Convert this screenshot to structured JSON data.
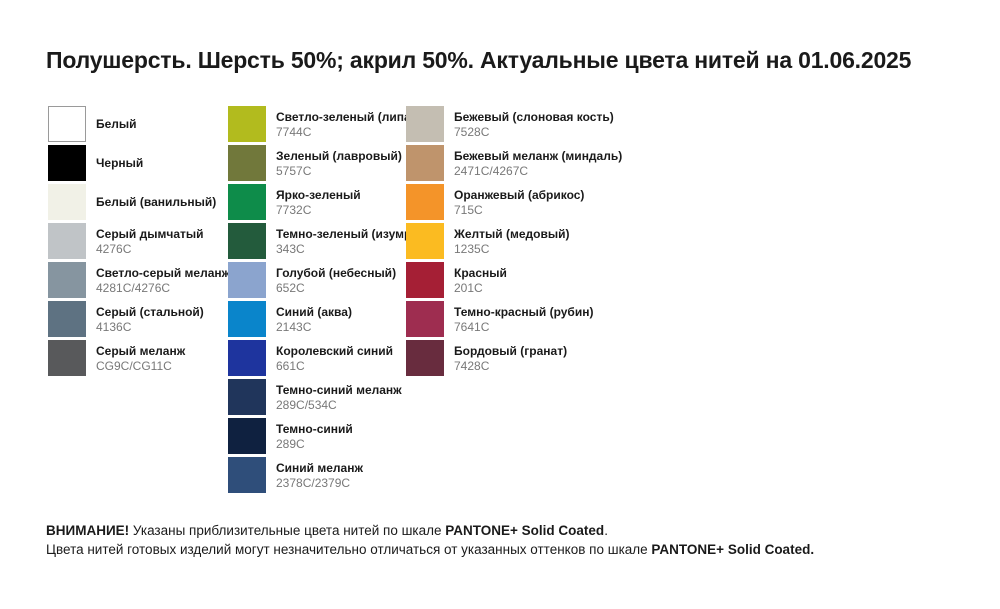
{
  "title": "Полушерсть. Шерсть 50%; акрил 50%. Актуальные цвета нитей на 01.06.2025",
  "palette": {
    "columns": [
      {
        "items": [
          {
            "name": "Белый",
            "code": "",
            "color": "#FFFFFF",
            "border": true
          },
          {
            "name": "Черный",
            "code": "",
            "color": "#000000"
          },
          {
            "name": "Белый (ванильный)",
            "code": "",
            "color": "#F1F1E7"
          },
          {
            "name": "Серый дымчатый",
            "code": "4276C",
            "color": "#C0C4C7"
          },
          {
            "name": "Светло-серый меланж",
            "code": "4281C/4276C",
            "color": "#8695A0"
          },
          {
            "name": "Серый (стальной)",
            "code": "4136C",
            "color": "#5E7282"
          },
          {
            "name": "Серый меланж",
            "code": "CG9C/CG11C",
            "color": "#58595B"
          }
        ]
      },
      {
        "items": [
          {
            "name": "Светло-зеленый (липа)",
            "code": "7744C",
            "color": "#B2BB1E"
          },
          {
            "name": "Зеленый (лавровый)",
            "code": "5757C",
            "color": "#71783B"
          },
          {
            "name": "Ярко-зеленый",
            "code": "7732C",
            "color": "#0E8C4A"
          },
          {
            "name": "Темно-зеленый (изумруд)",
            "code": "343C",
            "color": "#235B3C"
          },
          {
            "name": "Голубой (небесный)",
            "code": "652C",
            "color": "#8BA4CE"
          },
          {
            "name": "Синий (аква)",
            "code": "2143C",
            "color": "#0A85CB"
          },
          {
            "name": "Королевский синий",
            "code": "661C",
            "color": "#1E349E"
          },
          {
            "name": "Темно-синий меланж",
            "code": "289C/534C",
            "color": "#20355B"
          },
          {
            "name": "Темно-синий",
            "code": "289C",
            "color": "#0F2140"
          },
          {
            "name": "Синий меланж",
            "code": "2378C/2379C",
            "color": "#2F4E7A"
          }
        ]
      },
      {
        "items": [
          {
            "name": "Бежевый (слоновая кость)",
            "code": "7528C",
            "color": "#C4BEB2"
          },
          {
            "name": "Бежевый меланж (миндаль)",
            "code": "2471C/4267C",
            "color": "#BF946C"
          },
          {
            "name": "Оранжевый (абрикос)",
            "code": "715C",
            "color": "#F49429"
          },
          {
            "name": "Желтый (медовый)",
            "code": "1235C",
            "color": "#FBBB21"
          },
          {
            "name": "Красный",
            "code": "201C",
            "color": "#A51F35"
          },
          {
            "name": "Темно-красный (рубин)",
            "code": "7641C",
            "color": "#9E2D50"
          },
          {
            "name": "Бордовый (гранат)",
            "code": "7428C",
            "color": "#682C3E"
          }
        ]
      }
    ]
  },
  "footer": {
    "line1": {
      "attention": "ВНИМАНИЕ!",
      "text": " Указаны приблизительные цвета нитей по шкале ",
      "scale": "PANTONE+ Solid Coated",
      "dot": "."
    },
    "line2": {
      "text": "Цвета нитей готовых изделий могут незначительно отличаться от указанных оттенков по шкале ",
      "scale": "PANTONE+ Solid Coated."
    }
  }
}
